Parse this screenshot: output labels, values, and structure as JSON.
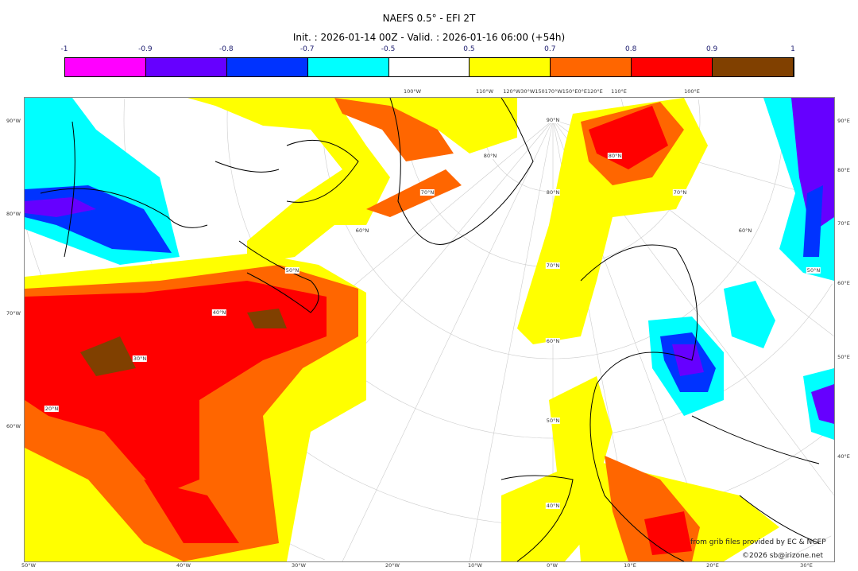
{
  "title": "NAEFS 0.5° - EFI 2T",
  "subtitle": "Init. : 2026-01-14 00Z - Valid. : 2026-01-16 06:00 (+54h)",
  "colorbar": {
    "ticks": [
      "-1",
      "-0.9",
      "-0.8",
      "-0.7",
      "-0.5",
      "0.5",
      "0.7",
      "0.8",
      "0.9",
      "1"
    ],
    "colors": [
      "#ff00ff",
      "#6600ff",
      "#0033ff",
      "#00ffff",
      "#ffffff",
      "#ffff00",
      "#ff6600",
      "#ff0000",
      "#804000"
    ]
  },
  "axes": {
    "left": [
      "90°W",
      "80°W",
      "70°W",
      "60°W"
    ],
    "right": [
      "90°E",
      "80°E",
      "70°E",
      "60°E",
      "50°E",
      "40°E"
    ],
    "bottom": [
      "50°W",
      "40°W",
      "30°W",
      "20°W",
      "10°W",
      "0°W",
      "10°E",
      "20°E",
      "30°E"
    ],
    "top": [
      "100°W",
      "110°W",
      "120°W30°W150170°W150°E0°E120°E",
      "110°E",
      "100°E"
    ],
    "lat_labels": [
      "90°N",
      "80°N",
      "70°N",
      "60°N",
      "50°N",
      "40°N",
      "80°N",
      "70°N",
      "60°N",
      "50°N",
      "80°N",
      "70°N",
      "60°N",
      "50°N",
      "40°N",
      "30°N",
      "20°N"
    ]
  },
  "credits": {
    "source": "from grib files provided by EC & NCEP",
    "copyright": "©2026 sb@irizone.net"
  }
}
